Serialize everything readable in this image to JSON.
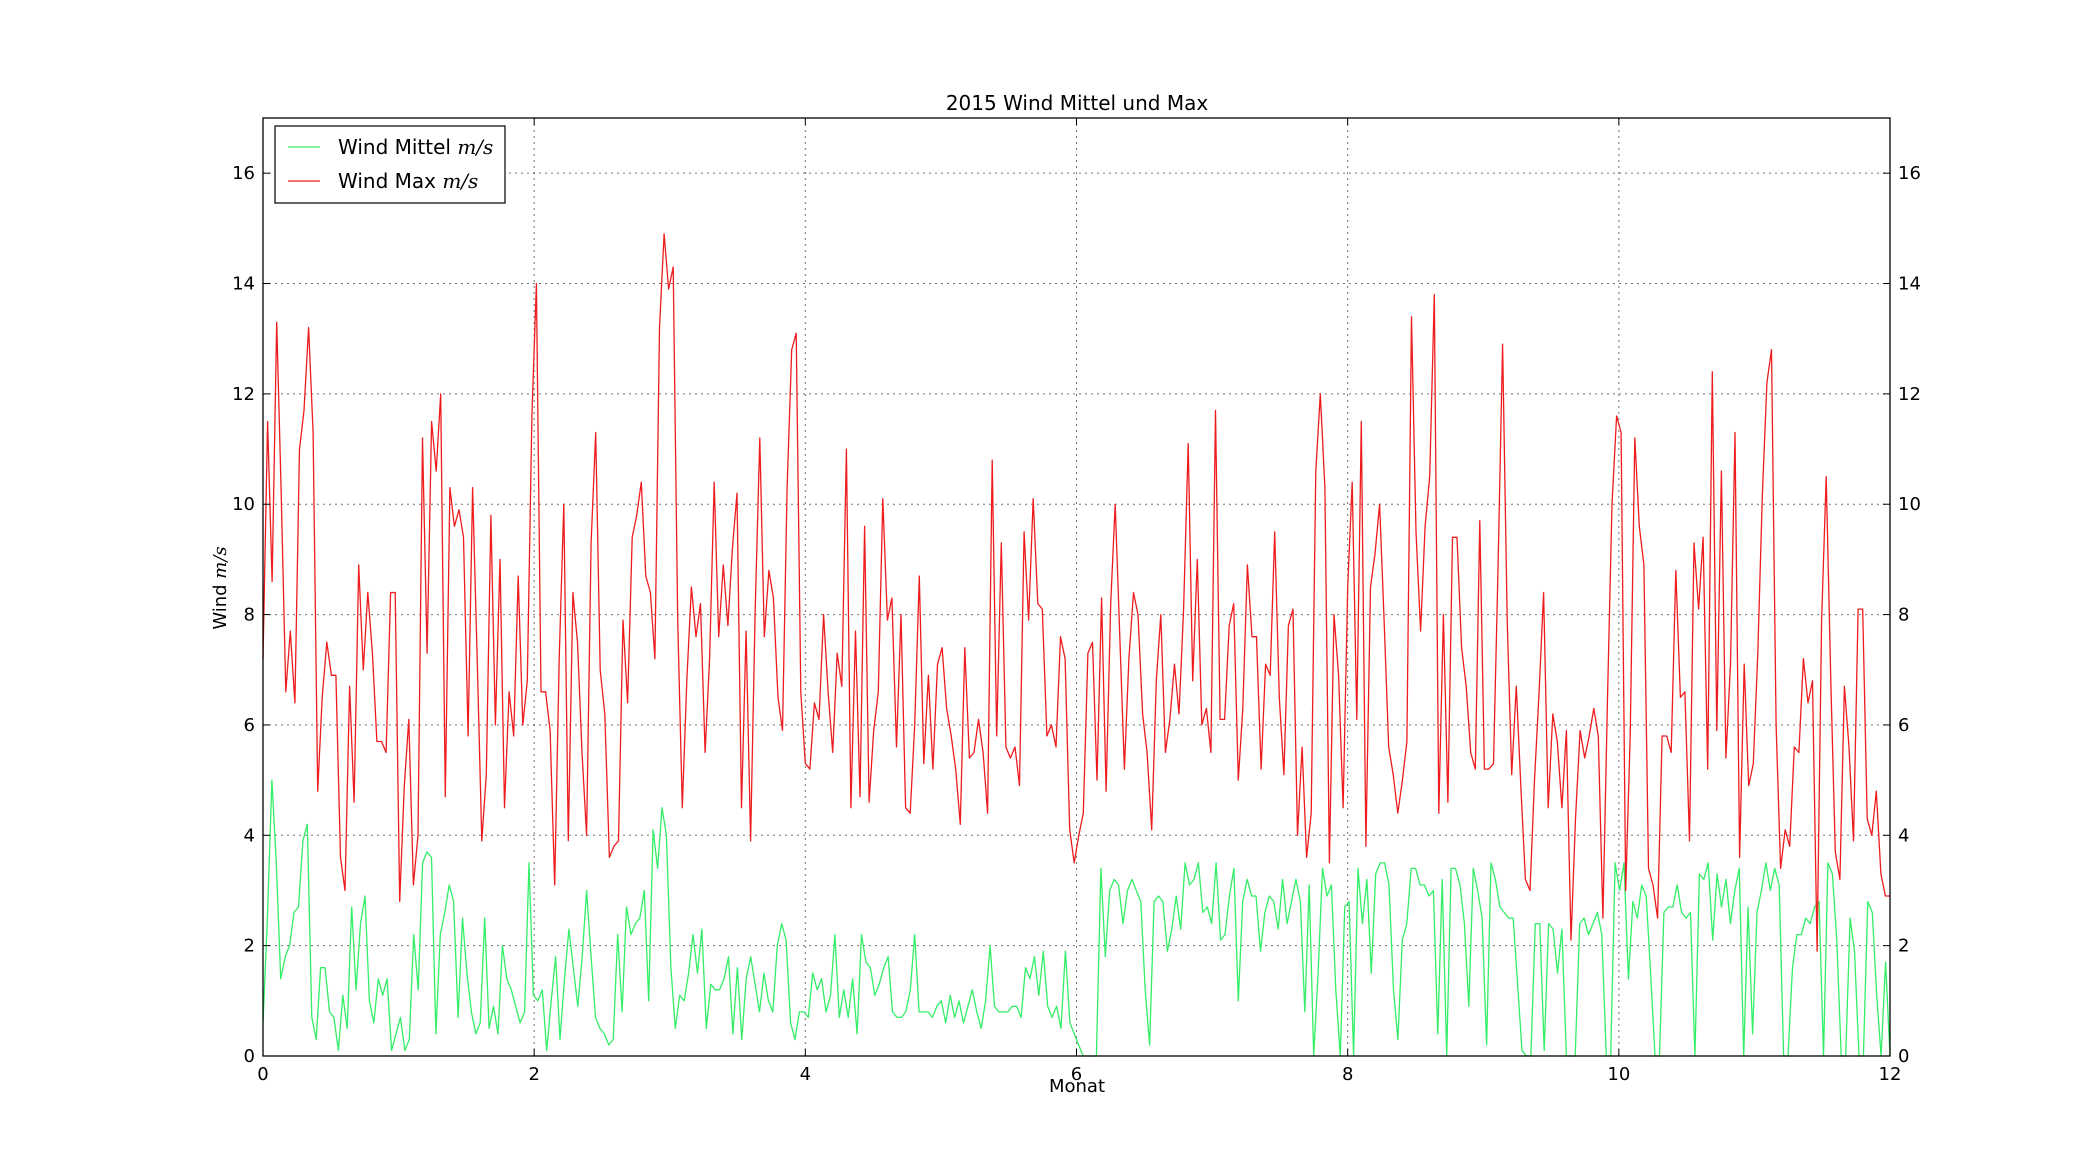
{
  "chart_data": {
    "type": "line",
    "title": "2015 Wind Mittel und Max",
    "xlabel": "Monat",
    "ylabel_text": "Wind",
    "ylabel_unit": "m/s",
    "xlim": [
      0,
      12
    ],
    "ylim": [
      0,
      17
    ],
    "xticks": [
      0,
      2,
      4,
      6,
      8,
      10,
      12
    ],
    "yticks": [
      0,
      2,
      4,
      6,
      8,
      10,
      12,
      14,
      16
    ],
    "grid": true,
    "legend_position": "top-left",
    "series": [
      {
        "name_text": "Wind Mittel",
        "name_unit": "m/s",
        "color": "#33ee66",
        "values": [
          0.6,
          2.5,
          5,
          3.5,
          1.4,
          1.8,
          2,
          2.6,
          2.7,
          3.9,
          4.2,
          0.7,
          0.3,
          1.6,
          1.6,
          0.8,
          0.7,
          0.1,
          1.1,
          0.5,
          2.7,
          1.2,
          2.4,
          2.9,
          1,
          0.6,
          1.4,
          1.1,
          1.4,
          0.1,
          0.4,
          0.7,
          0.1,
          0.3,
          2.2,
          1.2,
          3.5,
          3.7,
          3.6,
          0.4,
          2.2,
          2.6,
          3.1,
          2.8,
          0.7,
          2.5,
          1.5,
          0.8,
          0.4,
          0.6,
          2.5,
          0.5,
          0.9,
          0.4,
          2,
          1.4,
          1.2,
          0.9,
          0.6,
          0.8,
          3.5,
          1.1,
          1,
          1.2,
          0.1,
          1,
          1.8,
          0.3,
          1.4,
          2.3,
          1.6,
          0.9,
          1.8,
          3,
          1.8,
          0.7,
          0.5,
          0.4,
          0.2,
          0.3,
          2.2,
          0.8,
          2.7,
          2.2,
          2.4,
          2.5,
          3,
          1,
          4.1,
          3.4,
          4.5,
          4,
          1.6,
          0.5,
          1.1,
          1,
          1.5,
          2.2,
          1.5,
          2.3,
          0.5,
          1.3,
          1.2,
          1.2,
          1.4,
          1.8,
          0.4,
          1.6,
          0.3,
          1.4,
          1.8,
          1.3,
          0.8,
          1.5,
          1,
          0.8,
          2,
          2.4,
          2.1,
          0.6,
          0.3,
          0.8,
          0.8,
          0.7,
          1.5,
          1.2,
          1.4,
          0.8,
          1.1,
          2.2,
          0.7,
          1.2,
          0.7,
          1.4,
          0.4,
          2.2,
          1.7,
          1.6,
          1.1,
          1.3,
          1.6,
          1.8,
          0.8,
          0.7,
          0.7,
          0.8,
          1.2,
          2.2,
          0.8,
          0.8,
          0.8,
          0.7,
          0.9,
          1,
          0.6,
          1.1,
          0.7,
          1,
          0.6,
          0.9,
          1.2,
          0.8,
          0.5,
          1,
          2,
          0.9,
          0.8,
          0.8,
          0.8,
          0.9,
          0.9,
          0.7,
          1.6,
          1.4,
          1.8,
          1.1,
          1.9,
          0.9,
          0.7,
          0.9,
          0.5,
          1.9,
          0.6,
          0.4,
          0.2,
          0,
          0,
          0,
          0,
          3.4,
          1.8,
          3,
          3.2,
          3.1,
          2.4,
          3,
          3.2,
          3,
          2.8,
          1.2,
          0.2,
          2.8,
          2.9,
          2.8,
          1.9,
          2.3,
          2.9,
          2.3,
          3.5,
          3.1,
          3.2,
          3.5,
          2.6,
          2.7,
          2.4,
          3.5,
          2.1,
          2.2,
          2.9,
          3.4,
          1,
          2.8,
          3.2,
          2.9,
          2.9,
          1.9,
          2.6,
          2.9,
          2.8,
          2.3,
          3.2,
          2.4,
          2.8,
          3.2,
          2.8,
          0.8,
          3.1,
          0,
          1.5,
          3.4,
          2.9,
          3.1,
          1.2,
          0,
          2.7,
          2.8,
          0,
          3.4,
          2.4,
          3.2,
          1.5,
          3.3,
          3.5,
          3.5,
          3.1,
          1.2,
          0.3,
          2.1,
          2.4,
          3.4,
          3.4,
          3.1,
          3.1,
          2.9,
          3,
          0.4,
          3.2,
          0,
          3.4,
          3.4,
          3.1,
          2.4,
          0.9,
          3.4,
          3,
          2.5,
          0.2,
          3.5,
          3.2,
          2.7,
          2.6,
          2.5,
          2.5,
          1.3,
          0.1,
          0,
          0,
          2.4,
          2.4,
          0.1,
          2.4,
          2.3,
          1.5,
          2.3,
          0,
          0,
          0,
          2.4,
          2.5,
          2.2,
          2.4,
          2.6,
          2.2,
          0,
          0,
          3.5,
          3,
          3.5,
          1.4,
          2.8,
          2.5,
          3.1,
          2.9,
          1.5,
          0,
          0,
          2.6,
          2.7,
          2.7,
          3.1,
          2.6,
          2.5,
          2.6,
          0,
          3.3,
          3.2,
          3.5,
          2.1,
          3.3,
          2.7,
          3.2,
          2.4,
          3,
          3.4,
          0,
          2.7,
          0.4,
          2.6,
          3,
          3.5,
          3,
          3.4,
          3.1,
          0,
          0,
          1.6,
          2.2,
          2.2,
          2.5,
          2.4,
          2.7,
          2.8,
          0,
          3.5,
          3.3,
          2.1,
          0,
          0,
          2.5,
          1.9,
          0,
          0,
          2.8,
          2.6,
          1.1,
          0,
          1.7,
          0
        ]
      },
      {
        "name_text": "Wind Max",
        "name_unit": "m/s",
        "color": "#ee1c1c",
        "values": [
          7.2,
          11.5,
          8.6,
          13.3,
          10.2,
          6.6,
          7.7,
          6.4,
          11,
          11.7,
          13.2,
          11.3,
          4.8,
          6.5,
          7.5,
          6.9,
          6.9,
          3.6,
          3,
          6.7,
          4.6,
          8.9,
          7,
          8.4,
          7.3,
          5.7,
          5.7,
          5.5,
          8.4,
          8.4,
          2.8,
          4.9,
          6.1,
          3.1,
          4,
          11.2,
          7.3,
          11.5,
          10.6,
          12,
          4.7,
          10.3,
          9.6,
          9.9,
          9.4,
          5.8,
          10.3,
          7.2,
          3.9,
          5.1,
          9.8,
          6,
          9,
          4.5,
          6.6,
          5.8,
          8.7,
          6,
          6.8,
          11.6,
          14,
          6.6,
          6.6,
          5.9,
          3.1,
          7.2,
          10,
          3.9,
          8.4,
          7.5,
          5.5,
          4,
          9.3,
          11.3,
          7,
          6.2,
          3.6,
          3.8,
          3.9,
          7.9,
          6.4,
          9.4,
          9.8,
          10.4,
          8.7,
          8.4,
          7.2,
          13.2,
          14.9,
          13.9,
          14.3,
          7.9,
          4.5,
          6.8,
          8.5,
          7.6,
          8.2,
          5.5,
          7.2,
          10.4,
          7.6,
          8.9,
          7.8,
          9.2,
          10.2,
          4.5,
          7.7,
          3.9,
          8.1,
          11.2,
          7.6,
          8.8,
          8.3,
          6.5,
          5.9,
          10.3,
          12.8,
          13.1,
          6.6,
          5.3,
          5.2,
          6.4,
          6.1,
          8,
          6.6,
          5.5,
          7.3,
          6.7,
          11,
          4.5,
          7.7,
          4.7,
          9.6,
          4.6,
          5.9,
          6.6,
          10.1,
          7.9,
          8.3,
          5.6,
          8,
          4.5,
          4.4,
          6,
          8.7,
          5.3,
          6.9,
          5.2,
          7.1,
          7.4,
          6.3,
          5.8,
          5.2,
          4.2,
          7.4,
          5.4,
          5.5,
          6.1,
          5.5,
          4.4,
          10.8,
          5.8,
          9.3,
          5.6,
          5.4,
          5.6,
          4.9,
          9.5,
          7.9,
          10.1,
          8.2,
          8.1,
          5.8,
          6,
          5.6,
          7.6,
          7.2,
          4.1,
          3.5,
          4,
          4.4,
          7.3,
          7.5,
          5,
          8.3,
          4.8,
          8.2,
          10,
          7.6,
          5.2,
          7.2,
          8.4,
          8,
          6.2,
          5.5,
          4.1,
          6.8,
          8,
          5.5,
          6.1,
          7.1,
          6.2,
          8.1,
          11.1,
          6.8,
          9,
          6,
          6.3,
          5.5,
          11.7,
          6.1,
          6.1,
          7.8,
          8.2,
          5,
          6.3,
          8.9,
          7.6,
          7.6,
          5.2,
          7.1,
          6.9,
          9.5,
          6.5,
          5.1,
          7.8,
          8.1,
          4,
          5.6,
          3.6,
          4.4,
          10.6,
          12,
          10.3,
          3.5,
          8,
          6.9,
          4.5,
          8.5,
          10.4,
          6.1,
          11.5,
          3.8,
          8.5,
          9.1,
          10,
          7.9,
          5.6,
          5.1,
          4.4,
          5,
          5.7,
          13.4,
          9.5,
          7.7,
          9.6,
          10.5,
          13.8,
          4.4,
          8,
          4.6,
          9.4,
          9.4,
          7.4,
          6.7,
          5.5,
          5.2,
          9.7,
          5.2,
          5.2,
          5.3,
          8.9,
          12.9,
          7.9,
          5.1,
          6.7,
          4.9,
          3.2,
          3,
          5,
          6.6,
          8.4,
          4.5,
          6.2,
          5.7,
          4.5,
          5.9,
          2.1,
          4.3,
          5.9,
          5.4,
          5.8,
          6.3,
          5.8,
          2.5,
          6.4,
          10,
          11.6,
          11.3,
          3,
          5.8,
          11.2,
          9.6,
          8.9,
          3.4,
          3.1,
          2.5,
          5.8,
          5.8,
          5.5,
          8.8,
          6.5,
          6.6,
          3.9,
          9.3,
          8.1,
          9.4,
          5.2,
          12.4,
          5.9,
          10.6,
          5.4,
          7.1,
          11.3,
          3.6,
          7.1,
          4.9,
          5.3,
          7.3,
          10.2,
          12.2,
          12.8,
          6,
          3.4,
          4.1,
          3.8,
          5.6,
          5.5,
          7.2,
          6.4,
          6.8,
          1.9,
          7.9,
          10.5,
          6.8,
          3.7,
          3.2,
          6.7,
          5.6,
          3.9,
          8.1,
          8.1,
          4.3,
          4,
          4.8,
          3.3,
          2.9,
          2.9
        ]
      }
    ]
  }
}
